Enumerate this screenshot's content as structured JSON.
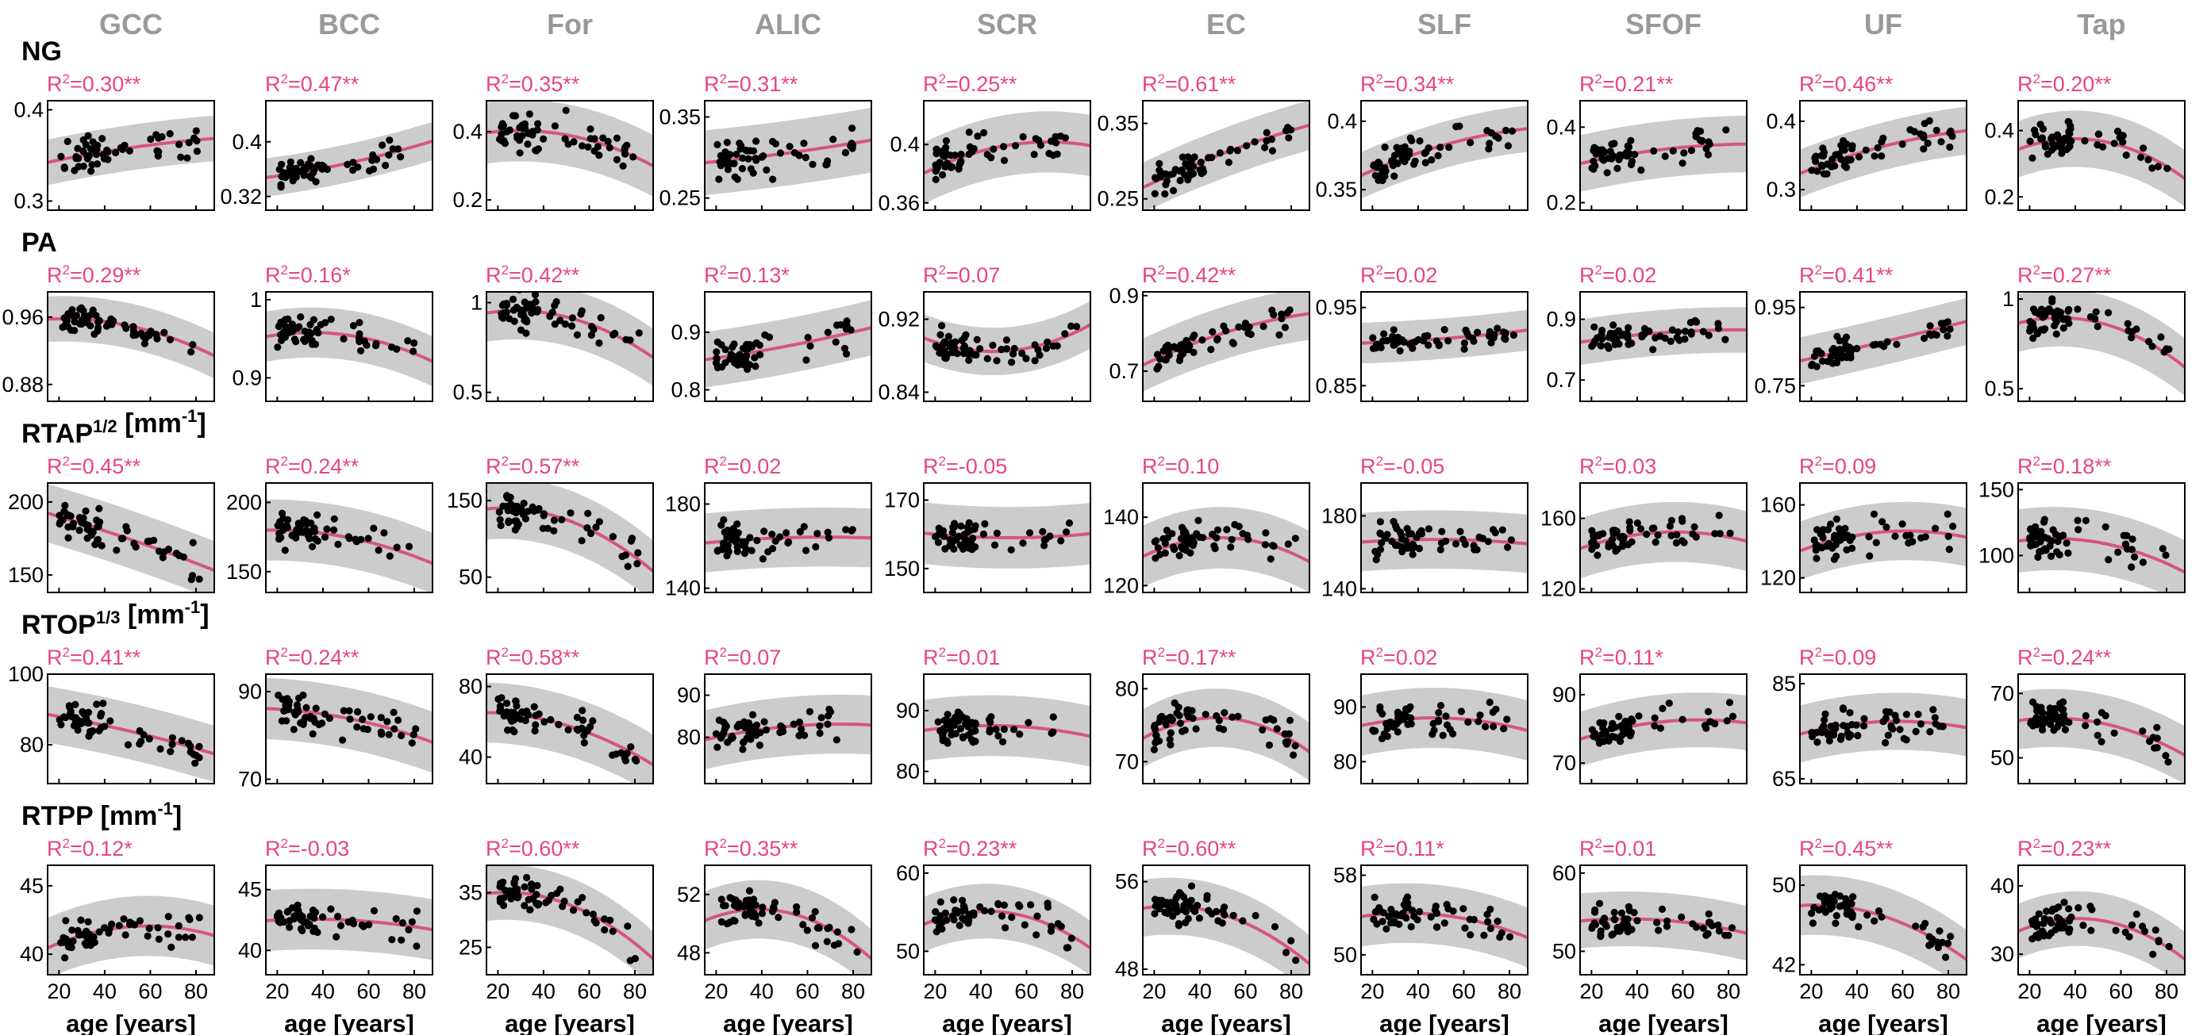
{
  "chart_data": {
    "type": "scatter",
    "columns": [
      "GCC",
      "BCC",
      "For",
      "ALIC",
      "SCR",
      "EC",
      "SLF",
      "SFOF",
      "UF",
      "Tap"
    ],
    "rows": [
      {
        "label": "NG",
        "sup": "",
        "unit": ""
      },
      {
        "label": "PA",
        "sup": "",
        "unit": ""
      },
      {
        "label": "RTAP",
        "sup": "1/2",
        "unit": " [mm",
        "unit_sup": "-1",
        "unit_end": "]"
      },
      {
        "label": "RTOP",
        "sup": "1/3",
        "unit": " [mm",
        "unit_sup": "-1",
        "unit_end": "]"
      },
      {
        "label": "RTPP",
        "sup": "",
        "unit": " [mm",
        "unit_sup": "-1",
        "unit_end": "]"
      }
    ],
    "xlabel": "age [years]",
    "xlim": [
      15,
      88
    ],
    "xticks": [
      20,
      40,
      60,
      80
    ],
    "colors": {
      "column_title": "#999999",
      "fit": "#d6567a",
      "r2": "#e8467c",
      "band": "#cccccc",
      "points": "#000000"
    },
    "panels": [
      [
        {
          "r2": "0.30",
          "sig": "**",
          "ylim": [
            0.29,
            0.41
          ],
          "yticks": [
            "0.3",
            "0.4"
          ],
          "fit": [
            0.345,
            0.358,
            0.368
          ],
          "band": 0.025,
          "spread": 0.016
        },
        {
          "r2": "0.47",
          "sig": "**",
          "ylim": [
            0.3,
            0.46
          ],
          "yticks": [
            "0.32",
            "0.4"
          ],
          "fit": [
            0.35,
            0.368,
            0.398
          ],
          "band": 0.028,
          "spread": 0.016
        },
        {
          "r2": "0.35",
          "sig": "**",
          "ylim": [
            0.17,
            0.49
          ],
          "yticks": [
            "0.2",
            "0.4"
          ],
          "fit": [
            0.4,
            0.39,
            0.31
          ],
          "band": 0.09,
          "spread": 0.045
        },
        {
          "r2": "0.31",
          "sig": "**",
          "ylim": [
            0.235,
            0.37
          ],
          "yticks": [
            "0.25",
            "0.35"
          ],
          "fit": [
            0.295,
            0.305,
            0.32
          ],
          "band": 0.04,
          "spread": 0.022
        },
        {
          "r2": "0.25",
          "sig": "**",
          "ylim": [
            0.355,
            0.43
          ],
          "yticks": [
            "0.36",
            "0.4"
          ],
          "fit": [
            0.384,
            0.399,
            0.4
          ],
          "band": 0.021,
          "spread": 0.011
        },
        {
          "r2": "0.61",
          "sig": "**",
          "ylim": [
            0.235,
            0.38
          ],
          "yticks": [
            "0.25",
            "0.35"
          ],
          "fit": [
            0.272,
            0.31,
            0.345
          ],
          "band": 0.033,
          "spread": 0.018
        },
        {
          "r2": "0.34",
          "sig": "**",
          "ylim": [
            0.335,
            0.415
          ],
          "yticks": [
            "0.35",
            "0.4"
          ],
          "fit": [
            0.364,
            0.382,
            0.394
          ],
          "band": 0.017,
          "spread": 0.01
        },
        {
          "r2": "0.21",
          "sig": "**",
          "ylim": [
            0.18,
            0.47
          ],
          "yticks": [
            "0.2",
            "0.4"
          ],
          "fit": [
            0.31,
            0.34,
            0.355
          ],
          "band": 0.075,
          "spread": 0.04
        },
        {
          "r2": "0.46",
          "sig": "**",
          "ylim": [
            0.27,
            0.43
          ],
          "yticks": [
            "0.3",
            "0.4"
          ],
          "fit": [
            0.33,
            0.362,
            0.385
          ],
          "band": 0.035,
          "spread": 0.019
        },
        {
          "r2": "0.20",
          "sig": "**",
          "ylim": [
            0.16,
            0.49
          ],
          "yticks": [
            "0.2",
            "0.4"
          ],
          "fit": [
            0.355,
            0.37,
            0.27
          ],
          "band": 0.085,
          "spread": 0.045
        }
      ],
      [
        {
          "r2": "0.29",
          "sig": "**",
          "ylim": [
            0.86,
            0.99
          ],
          "yticks": [
            "0.88",
            "0.96"
          ],
          "fit": [
            0.958,
            0.95,
            0.918
          ],
          "band": 0.027,
          "spread": 0.013
        },
        {
          "r2": "0.16",
          "sig": "*",
          "ylim": [
            0.87,
            1.01
          ],
          "yticks": [
            "0.9",
            "1"
          ],
          "fit": [
            0.955,
            0.955,
            0.925
          ],
          "band": 0.032,
          "spread": 0.016
        },
        {
          "r2": "0.42",
          "sig": "**",
          "ylim": [
            0.45,
            1.06
          ],
          "yticks": [
            "0.5",
            "1"
          ],
          "fit": [
            0.95,
            0.92,
            0.72
          ],
          "band": 0.16,
          "spread": 0.08
        },
        {
          "r2": "0.13",
          "sig": "*",
          "ylim": [
            0.78,
            0.97
          ],
          "yticks": [
            "0.8",
            "0.9"
          ],
          "fit": [
            0.855,
            0.875,
            0.905
          ],
          "band": 0.048,
          "spread": 0.024
        },
        {
          "r2": "0.07",
          "sig": "",
          "ylim": [
            0.83,
            0.95
          ],
          "yticks": [
            "0.84",
            "0.92"
          ],
          "fit": [
            0.895,
            0.885,
            0.91
          ],
          "band": 0.026,
          "spread": 0.013
        },
        {
          "r2": "0.42",
          "sig": "**",
          "ylim": [
            0.62,
            0.91
          ],
          "yticks": [
            "0.7",
            "0.9"
          ],
          "fit": [
            0.73,
            0.8,
            0.85
          ],
          "band": 0.07,
          "spread": 0.035
        },
        {
          "r2": "0.02",
          "sig": "",
          "ylim": [
            0.83,
            0.97
          ],
          "yticks": [
            "0.85",
            "0.95"
          ],
          "fit": [
            0.905,
            0.91,
            0.92
          ],
          "band": 0.026,
          "spread": 0.012
        },
        {
          "r2": "0.02",
          "sig": "",
          "ylim": [
            0.63,
            0.99
          ],
          "yticks": [
            "0.7",
            "0.9"
          ],
          "fit": [
            0.83,
            0.855,
            0.865
          ],
          "band": 0.075,
          "spread": 0.04
        },
        {
          "r2": "0.41",
          "sig": "**",
          "ylim": [
            0.71,
            0.99
          ],
          "yticks": [
            "0.75",
            "0.95"
          ],
          "fit": [
            0.82,
            0.86,
            0.91
          ],
          "band": 0.06,
          "spread": 0.03
        },
        {
          "r2": "0.27",
          "sig": "**",
          "ylim": [
            0.43,
            1.04
          ],
          "yticks": [
            "0.5",
            "1"
          ],
          "fit": [
            0.88,
            0.87,
            0.65
          ],
          "band": 0.16,
          "spread": 0.08
        }
      ],
      [
        {
          "r2": "0.45",
          "sig": "**",
          "ylim": [
            138,
            213
          ],
          "yticks": [
            "150",
            "200"
          ],
          "fit": [
            190,
            175,
            155
          ],
          "band": 20,
          "spread": 10
        },
        {
          "r2": "0.24",
          "sig": "**",
          "ylim": [
            135,
            214
          ],
          "yticks": [
            "150",
            "200"
          ],
          "fit": [
            180,
            175,
            158
          ],
          "band": 22,
          "spread": 11
        },
        {
          "r2": "0.57",
          "sig": "**",
          "ylim": [
            30,
            173
          ],
          "yticks": [
            "50",
            "150"
          ],
          "fit": [
            140,
            125,
            65
          ],
          "band": 40,
          "spread": 20
        },
        {
          "r2": "0.02",
          "sig": "",
          "ylim": [
            138,
            190
          ],
          "yticks": [
            "140",
            "180"
          ],
          "fit": [
            162,
            164,
            164
          ],
          "band": 14,
          "spread": 7
        },
        {
          "r2": "0.05",
          "sig": "",
          "neg": true,
          "ylim": [
            143,
            175
          ],
          "yticks": [
            "150",
            "170"
          ],
          "fit": [
            160,
            159,
            160
          ],
          "band": 9,
          "spread": 4.5
        },
        {
          "r2": "0.10",
          "sig": "",
          "ylim": [
            118,
            150
          ],
          "yticks": [
            "120",
            "140"
          ],
          "fit": [
            130,
            134,
            128
          ],
          "band": 9,
          "spread": 4.5
        },
        {
          "r2": "0.05",
          "sig": "",
          "neg": true,
          "ylim": [
            138,
            198
          ],
          "yticks": [
            "140",
            "180"
          ],
          "fit": [
            166,
            167,
            165
          ],
          "band": 16,
          "spread": 8
        },
        {
          "r2": "0.03",
          "sig": "",
          "ylim": [
            118,
            180
          ],
          "yticks": [
            "120",
            "160"
          ],
          "fit": [
            145,
            152,
            148
          ],
          "band": 17,
          "spread": 8
        },
        {
          "r2": "0.09",
          "sig": "",
          "ylim": [
            112,
            172
          ],
          "yticks": [
            "120",
            "160"
          ],
          "fit": [
            137,
            145,
            143
          ],
          "band": 16,
          "spread": 8
        },
        {
          "r2": "0.18",
          "sig": "**",
          "ylim": [
            72,
            155
          ],
          "yticks": [
            "100",
            "150"
          ],
          "fit": [
            112,
            110,
            90
          ],
          "band": 24,
          "spread": 12
        }
      ],
      [
        {
          "r2": "0.41",
          "sig": "**",
          "ylim": [
            69,
            100
          ],
          "yticks": [
            "80",
            "100"
          ],
          "fit": [
            88,
            84,
            78
          ],
          "band": 8,
          "spread": 4
        },
        {
          "r2": "0.24",
          "sig": "**",
          "ylim": [
            69,
            94
          ],
          "yticks": [
            "70",
            "90"
          ],
          "fit": [
            86,
            84,
            79
          ],
          "band": 7,
          "spread": 3.5
        },
        {
          "r2": "0.58",
          "sig": "**",
          "ylim": [
            25,
            87
          ],
          "yticks": [
            "40",
            "80"
          ],
          "fit": [
            65,
            58,
            38
          ],
          "band": 17,
          "spread": 8
        },
        {
          "r2": "0.07",
          "sig": "",
          "ylim": [
            69,
            95
          ],
          "yticks": [
            "80",
            "90"
          ],
          "fit": [
            80,
            82.5,
            83
          ],
          "band": 7,
          "spread": 3.5
        },
        {
          "r2": "0.01",
          "sig": "",
          "ylim": [
            78,
            96
          ],
          "yticks": [
            "80",
            "90"
          ],
          "fit": [
            87,
            87.5,
            86
          ],
          "band": 5,
          "spread": 2.5
        },
        {
          "r2": "0.17",
          "sig": "**",
          "ylim": [
            67,
            82
          ],
          "yticks": [
            "70",
            "80"
          ],
          "fit": [
            74,
            76,
            72
          ],
          "band": 4,
          "spread": 2
        },
        {
          "r2": "0.02",
          "sig": "",
          "ylim": [
            76,
            96
          ],
          "yticks": [
            "80",
            "90"
          ],
          "fit": [
            87,
            88,
            86
          ],
          "band": 5.5,
          "spread": 2.8
        },
        {
          "r2": "0.11",
          "sig": "*",
          "ylim": [
            64,
            96
          ],
          "yticks": [
            "70",
            "90"
          ],
          "fit": [
            78,
            82,
            82
          ],
          "band": 8,
          "spread": 4
        },
        {
          "r2": "0.09",
          "sig": "",
          "ylim": [
            64,
            87
          ],
          "yticks": [
            "65",
            "85"
          ],
          "fit": [
            75,
            77,
            76
          ],
          "band": 6,
          "spread": 3
        },
        {
          "r2": "0.24",
          "sig": "**",
          "ylim": [
            42,
            76
          ],
          "yticks": [
            "50",
            "70"
          ],
          "fit": [
            62,
            61,
            52
          ],
          "band": 9,
          "spread": 4.5
        }
      ],
      [
        {
          "r2": "0.12",
          "sig": "*",
          "ylim": [
            38.5,
            46.5
          ],
          "yticks": [
            "40",
            "45"
          ],
          "fit": [
            40.8,
            42.0,
            41.5
          ],
          "band": 2.2,
          "spread": 1.1
        },
        {
          "r2": "0.03",
          "sig": "",
          "neg": true,
          "ylim": [
            38,
            47
          ],
          "yticks": [
            "40",
            "45"
          ],
          "fit": [
            42.5,
            42.5,
            41.8
          ],
          "band": 2.5,
          "spread": 1.2
        },
        {
          "r2": "0.60",
          "sig": "**",
          "ylim": [
            20,
            40
          ],
          "yticks": [
            "25",
            "35"
          ],
          "fit": [
            35,
            33,
            24
          ],
          "band": 5,
          "spread": 2.5
        },
        {
          "r2": "0.35",
          "sig": "**",
          "ylim": [
            46.5,
            54
          ],
          "yticks": [
            "48",
            "52"
          ],
          "fit": [
            50.5,
            50.8,
            48.0
          ],
          "band": 2,
          "spread": 1
        },
        {
          "r2": "0.23",
          "sig": "**",
          "ylim": [
            47,
            61
          ],
          "yticks": [
            "50",
            "60"
          ],
          "fit": [
            54,
            55,
            51
          ],
          "band": 3.5,
          "spread": 1.8
        },
        {
          "r2": "0.60",
          "sig": "**",
          "ylim": [
            47.5,
            57.5
          ],
          "yticks": [
            "48",
            "56"
          ],
          "fit": [
            53.7,
            53.0,
            49.0
          ],
          "band": 2.6,
          "spread": 1.3
        },
        {
          "r2": "0.11",
          "sig": "*",
          "ylim": [
            48,
            59
          ],
          "yticks": [
            "50",
            "58"
          ],
          "fit": [
            54,
            54,
            52
          ],
          "band": 3,
          "spread": 1.5
        },
        {
          "r2": "0.01",
          "sig": "",
          "ylim": [
            47,
            61
          ],
          "yticks": [
            "50",
            "60"
          ],
          "fit": [
            54,
            54,
            52.5
          ],
          "band": 3.5,
          "spread": 1.8
        },
        {
          "r2": "0.45",
          "sig": "**",
          "ylim": [
            41,
            52
          ],
          "yticks": [
            "42",
            "50"
          ],
          "fit": [
            48,
            47,
            43
          ],
          "band": 3,
          "spread": 1.5
        },
        {
          "r2": "0.23",
          "sig": "**",
          "ylim": [
            27,
            43
          ],
          "yticks": [
            "30",
            "40"
          ],
          "fit": [
            34,
            35,
            30
          ],
          "band": 4,
          "spread": 2
        }
      ]
    ]
  }
}
